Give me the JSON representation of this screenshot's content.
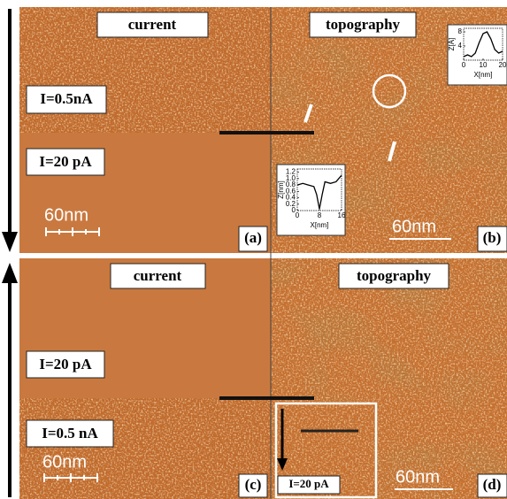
{
  "panels": [
    {
      "letter": "(a)",
      "title": "current",
      "labels": [
        "I=0.5nA",
        "I=20 pA"
      ],
      "scale": "60nm"
    },
    {
      "letter": "(b)",
      "title": "topography",
      "scale": "60nm"
    },
    {
      "letter": "(c)",
      "title": "current",
      "labels": [
        "I=20 pA",
        "I=0.5 nA"
      ],
      "scale": "60nm"
    },
    {
      "letter": "(d)",
      "title": "topography",
      "labels": [
        "I=20 pA"
      ],
      "scale": "60nm"
    }
  ],
  "chart_data": [
    {
      "type": "line",
      "xlabel": "X[nm]",
      "ylabel": "Z[Å]",
      "x": [
        0,
        2,
        4,
        6,
        8,
        10,
        12,
        14,
        16,
        18,
        20
      ],
      "values": [
        1,
        1.5,
        1,
        2,
        5,
        7.5,
        8,
        6,
        3,
        2,
        2.5
      ],
      "xlim": [
        0,
        20
      ],
      "ylim": [
        0,
        9
      ],
      "xticks": [
        0,
        10,
        20
      ],
      "yticks": [
        4,
        8
      ],
      "color": "#000000"
    },
    {
      "type": "line",
      "xlabel": "X[nm]",
      "ylabel": "Z[nm]",
      "x": [
        0,
        2,
        4,
        6,
        7,
        8,
        9,
        10,
        12,
        14,
        16
      ],
      "values": [
        0.8,
        0.85,
        0.8,
        0.75,
        0.5,
        0.05,
        0.5,
        0.9,
        0.85,
        0.9,
        1.1
      ],
      "xlim": [
        0,
        16
      ],
      "ylim": [
        0,
        1.3
      ],
      "xticks": [
        0,
        8,
        16
      ],
      "yticks": [
        0,
        0.2,
        0.4,
        0.6,
        0.8,
        {
          "value": 1,
          "label": "1.0"
        },
        1.2
      ],
      "color": "#000000"
    }
  ]
}
